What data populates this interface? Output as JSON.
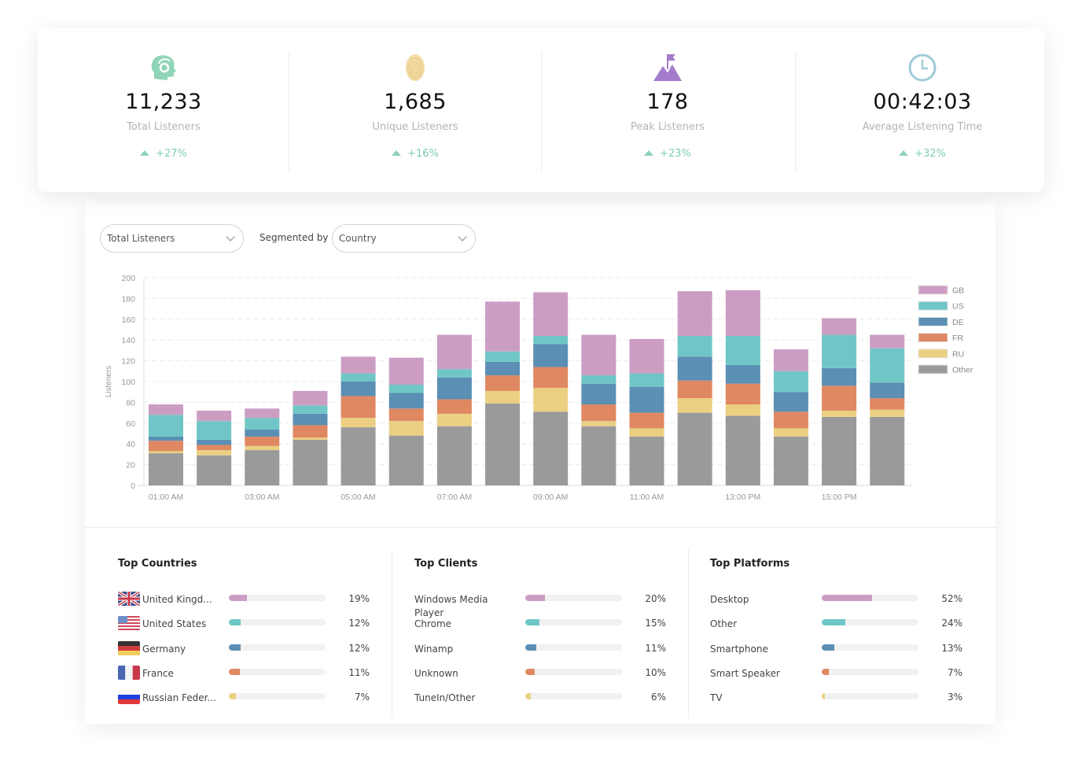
{
  "stats": [
    {
      "icon": "head-headphones-icon",
      "value": "11,233",
      "label": "Total Listeners",
      "change": "+27%",
      "color": "#8fd4b7"
    },
    {
      "icon": "fingerprint-icon",
      "value": "1,685",
      "label": "Unique Listeners",
      "change": "+16%",
      "color": "#f1d7a0"
    },
    {
      "icon": "mountain-flag-icon",
      "value": "178",
      "label": "Peak Listeners",
      "change": "+23%",
      "color": "#a27ccb"
    },
    {
      "icon": "clock-icon",
      "value": "00:42:03",
      "label": "Average Listening Time",
      "change": "+32%",
      "color": "#9ecbd8"
    }
  ],
  "filters": {
    "metric": "Total Listeners",
    "segmented_by_label": "Segmented by",
    "segment": "Country"
  },
  "chart_data": {
    "type": "bar",
    "stacked": true,
    "ylabel": "Listeners",
    "ylim": [
      0,
      200
    ],
    "yticks": [
      0,
      20,
      40,
      60,
      80,
      100,
      120,
      140,
      160,
      180,
      200
    ],
    "grid": true,
    "legend_position": "right",
    "x_tick_labels": [
      "01:00 AM",
      "",
      "03:00 AM",
      "",
      "05:00 AM",
      "",
      "07:00 AM",
      "",
      "09:00 AM",
      "",
      "11:00 AM",
      "",
      "13:00 PM",
      "",
      "15:00 PM",
      ""
    ],
    "series": [
      {
        "name": "Other",
        "color": "#9a9a9a",
        "values": [
          31,
          29,
          34,
          44,
          56,
          48,
          57,
          79,
          71,
          57,
          47,
          70,
          67,
          47,
          66,
          66
        ]
      },
      {
        "name": "RU",
        "color": "#ebcf82",
        "values": [
          2,
          5,
          4,
          2,
          9,
          14,
          12,
          12,
          23,
          5,
          8,
          14,
          11,
          8,
          6,
          7
        ]
      },
      {
        "name": "FR",
        "color": "#df8862",
        "values": [
          10,
          5,
          9,
          12,
          21,
          12,
          14,
          15,
          20,
          16,
          15,
          17,
          20,
          16,
          24,
          11
        ]
      },
      {
        "name": "DE",
        "color": "#5b8fb4",
        "values": [
          4,
          5,
          7,
          11,
          14,
          15,
          21,
          13,
          22,
          20,
          25,
          23,
          18,
          19,
          17,
          15
        ]
      },
      {
        "name": "US",
        "color": "#70c6c6",
        "values": [
          21,
          18,
          11,
          8,
          8,
          8,
          8,
          10,
          8,
          8,
          13,
          20,
          28,
          20,
          32,
          33
        ]
      },
      {
        "name": "GB",
        "color": "#cc9dc2",
        "values": [
          10,
          10,
          9,
          14,
          16,
          26,
          33,
          48,
          42,
          39,
          33,
          43,
          44,
          21,
          16,
          13
        ]
      }
    ],
    "legend_order": [
      "GB",
      "US",
      "DE",
      "FR",
      "RU",
      "Other"
    ]
  },
  "panels": [
    {
      "title": "Top Countries",
      "items": [
        {
          "label": "United Kingd...",
          "flag": "uk",
          "pct": 19,
          "pct_label": "19%",
          "color": "#cc9dc2"
        },
        {
          "label": "United States",
          "flag": "us",
          "pct": 12,
          "pct_label": "12%",
          "color": "#70c6c6"
        },
        {
          "label": "Germany",
          "flag": "de",
          "pct": 12,
          "pct_label": "12%",
          "color": "#5b8fb4"
        },
        {
          "label": "France",
          "flag": "fr",
          "pct": 11,
          "pct_label": "11%",
          "color": "#df8862"
        },
        {
          "label": "Russian Feder...",
          "flag": "ru",
          "pct": 7,
          "pct_label": "7%",
          "color": "#ebcf82"
        }
      ]
    },
    {
      "title": "Top Clients",
      "items": [
        {
          "label": "Windows Media Player",
          "pct": 20,
          "pct_label": "20%",
          "color": "#cc9dc2"
        },
        {
          "label": "Chrome",
          "pct": 15,
          "pct_label": "15%",
          "color": "#70c6c6"
        },
        {
          "label": "Winamp",
          "pct": 11,
          "pct_label": "11%",
          "color": "#5b8fb4"
        },
        {
          "label": "Unknown",
          "pct": 10,
          "pct_label": "10%",
          "color": "#df8862"
        },
        {
          "label": "TuneIn/Other",
          "pct": 6,
          "pct_label": "6%",
          "color": "#ebcf82"
        }
      ]
    },
    {
      "title": "Top Platforms",
      "items": [
        {
          "label": "Desktop",
          "pct": 52,
          "pct_label": "52%",
          "color": "#cc9dc2"
        },
        {
          "label": "Other",
          "pct": 24,
          "pct_label": "24%",
          "color": "#70c6c6"
        },
        {
          "label": "Smartphone",
          "pct": 13,
          "pct_label": "13%",
          "color": "#5b8fb4"
        },
        {
          "label": "Smart Speaker",
          "pct": 7,
          "pct_label": "7%",
          "color": "#df8862"
        },
        {
          "label": "TV",
          "pct": 3,
          "pct_label": "3%",
          "color": "#ebcf82"
        }
      ]
    }
  ]
}
